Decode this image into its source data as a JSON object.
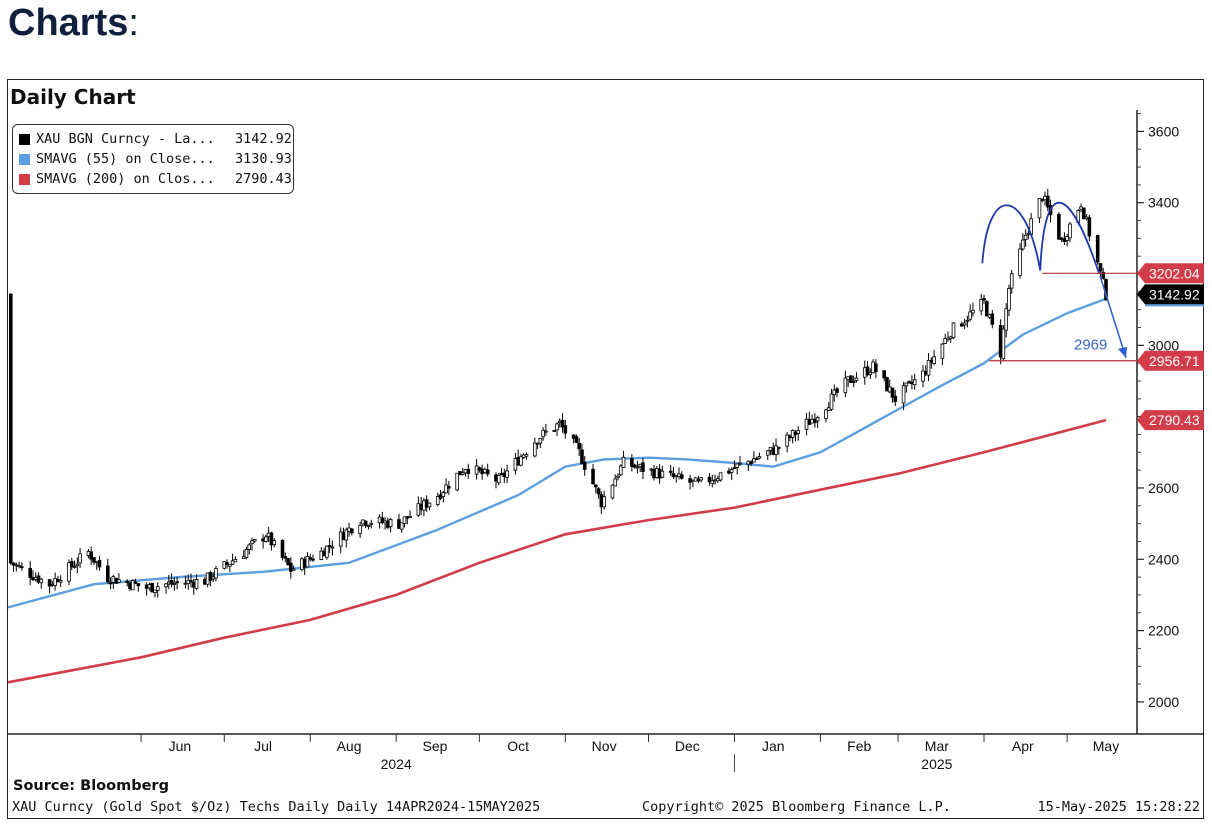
{
  "heading": {
    "bold": "Charts",
    "suffix": ":"
  },
  "chart_data": {
    "type": "line",
    "title": "Daily Chart",
    "legend": {
      "placement": "top-left",
      "entries": [
        {
          "label": "XAU BGN Curncy - La...",
          "value": "3142.92",
          "color": "#000000"
        },
        {
          "label": "SMAVG (55)  on Close...",
          "value": "3130.93",
          "color": "#5b9fe0"
        },
        {
          "label": "SMAVG (200)  on Clos...",
          "value": "2790.43",
          "color": "#d23b48"
        }
      ]
    },
    "x_axis": {
      "range": [
        "2024-04-14",
        "2025-05-15"
      ],
      "month_labels": [
        "Jun",
        "Jul",
        "Aug",
        "Sep",
        "Oct",
        "Nov",
        "Dec",
        "Jan",
        "Feb",
        "Mar",
        "Apr",
        "May"
      ],
      "year_labels": [
        "2024",
        "2025"
      ]
    },
    "y_axis": {
      "side": "right",
      "ticks": [
        2000,
        2200,
        2400,
        2600,
        2800,
        3000,
        3200,
        3400,
        3600
      ],
      "ylim": [
        1910,
        3660
      ]
    },
    "series": [
      {
        "name": "XAU BGN Curncy",
        "kind": "candlestick",
        "x": [
          "2024-04-15",
          "2024-04-29",
          "2024-05-13",
          "2024-05-20",
          "2024-06-03",
          "2024-06-10",
          "2024-06-24",
          "2024-07-08",
          "2024-07-16",
          "2024-07-25",
          "2024-08-05",
          "2024-08-19",
          "2024-09-02",
          "2024-09-16",
          "2024-09-26",
          "2024-10-08",
          "2024-10-22",
          "2024-10-30",
          "2024-11-06",
          "2024-11-14",
          "2024-11-22",
          "2024-12-05",
          "2024-12-19",
          "2025-01-02",
          "2025-01-16",
          "2025-01-30",
          "2025-02-11",
          "2025-02-20",
          "2025-02-28",
          "2025-03-10",
          "2025-03-20",
          "2025-04-01",
          "2025-04-07",
          "2025-04-10",
          "2025-04-16",
          "2025-04-22",
          "2025-04-29",
          "2025-05-06",
          "2025-05-12",
          "2025-05-15"
        ],
        "values": [
          2390,
          2330,
          2420,
          2350,
          2320,
          2330,
          2340,
          2420,
          2470,
          2370,
          2420,
          2510,
          2500,
          2580,
          2660,
          2620,
          2740,
          2780,
          2700,
          2560,
          2670,
          2640,
          2610,
          2660,
          2710,
          2800,
          2900,
          2940,
          2850,
          2920,
          3040,
          3120,
          2980,
          3160,
          3310,
          3420,
          3290,
          3400,
          3230,
          3142.92
        ]
      },
      {
        "name": "SMAVG (55)",
        "kind": "line",
        "x": [
          "2024-04-14",
          "2024-05-15",
          "2024-06-15",
          "2024-07-15",
          "2024-08-15",
          "2024-09-15",
          "2024-10-15",
          "2024-11-01",
          "2024-11-15",
          "2024-12-01",
          "2024-12-15",
          "2025-01-01",
          "2025-01-15",
          "2025-02-01",
          "2025-02-15",
          "2025-03-01",
          "2025-03-15",
          "2025-04-01",
          "2025-04-15",
          "2025-05-01",
          "2025-05-15"
        ],
        "values": [
          2265,
          2330,
          2350,
          2365,
          2390,
          2480,
          2580,
          2660,
          2680,
          2685,
          2680,
          2670,
          2660,
          2700,
          2760,
          2820,
          2880,
          2950,
          3030,
          3090,
          3130.93
        ]
      },
      {
        "name": "SMAVG (200)",
        "kind": "line",
        "x": [
          "2024-04-14",
          "2024-06-01",
          "2024-07-01",
          "2024-08-01",
          "2024-09-01",
          "2024-10-01",
          "2024-11-01",
          "2024-12-01",
          "2025-01-01",
          "2025-02-01",
          "2025-03-01",
          "2025-04-01",
          "2025-05-15"
        ],
        "values": [
          2055,
          2125,
          2180,
          2230,
          2300,
          2390,
          2470,
          2510,
          2545,
          2595,
          2640,
          2700,
          2790.43
        ]
      }
    ],
    "price_tags": [
      {
        "value": "3202.04",
        "color": "#d23b48"
      },
      {
        "value": "3142.92",
        "color": "#000000"
      },
      {
        "value": "2956.71",
        "color": "#d23b48"
      },
      {
        "value": "2790.43",
        "color": "#d23b48"
      }
    ],
    "annotations": [
      {
        "text": "2969",
        "color": "#3a63c8"
      }
    ]
  },
  "footer": {
    "source": "Source:  Bloomberg",
    "left": "XAU Curncy (Gold Spot  $/Oz) Techs Daily  Daily 14APR2024-15MAY2025",
    "center": "Copyright© 2025 Bloomberg Finance L.P.",
    "right": "15-May-2025 15:28:22"
  }
}
